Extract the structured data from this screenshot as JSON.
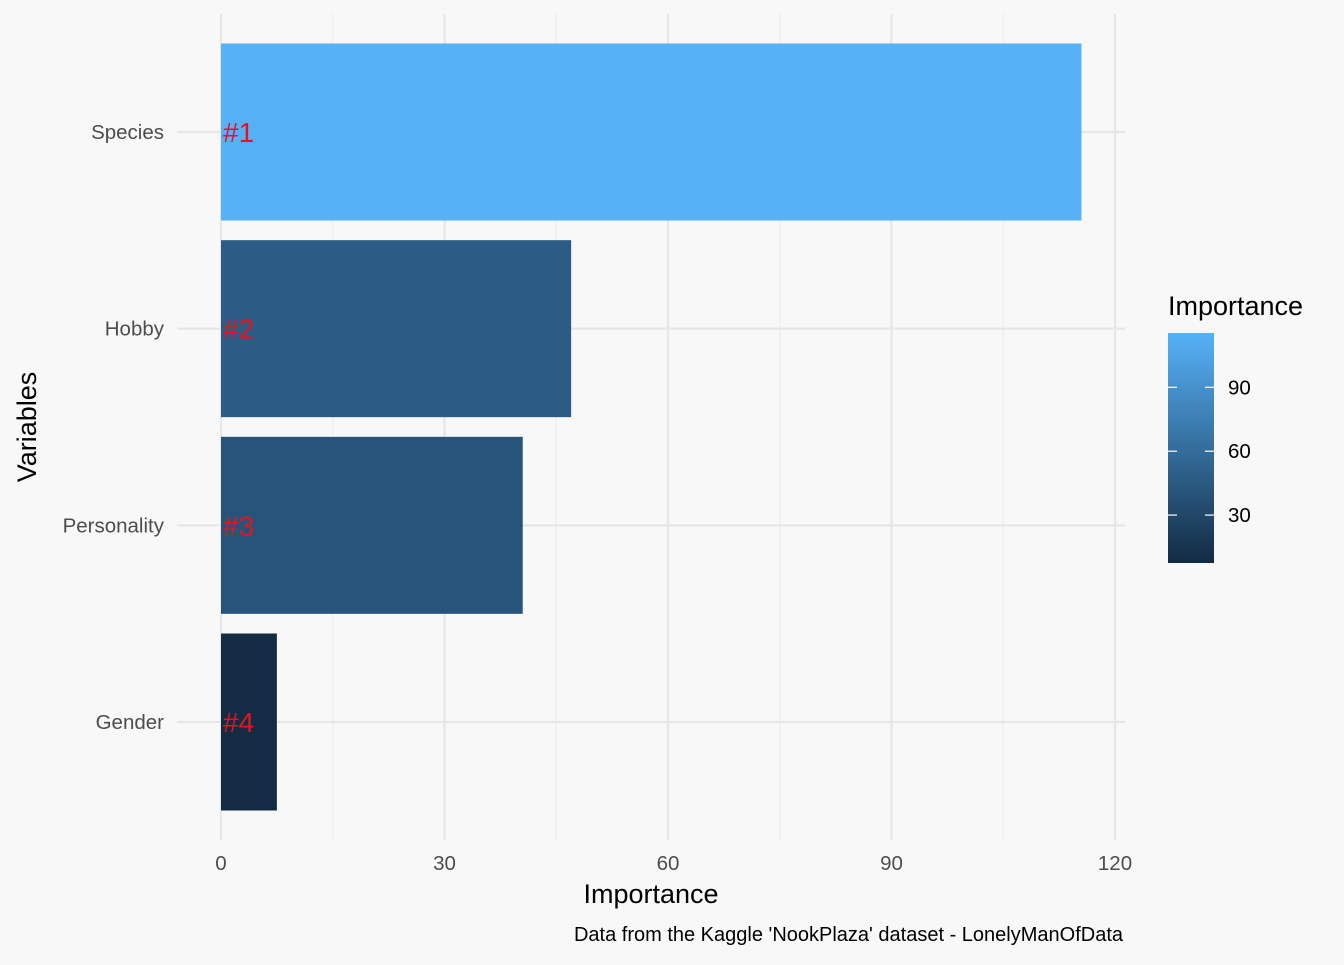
{
  "chart_data": {
    "type": "bar",
    "orientation": "horizontal",
    "categories": [
      "Species",
      "Hobby",
      "Personality",
      "Gender"
    ],
    "values": [
      115.5,
      47,
      40.5,
      7.5
    ],
    "ranks": [
      "#1",
      "#2",
      "#3",
      "#4"
    ],
    "xlabel": "Importance",
    "ylabel": "Variables",
    "xlim": [
      0,
      120
    ],
    "x_ticks": [
      0,
      30,
      60,
      90,
      120
    ],
    "grid": true,
    "rank_label_color": "#e8121f",
    "color_scale": {
      "low": "#132b43",
      "high": "#56b1f7",
      "min": 7.5,
      "max": 115.5
    },
    "legend": {
      "title": "Importance",
      "placement": "right",
      "ticks": [
        30,
        60,
        90
      ]
    },
    "caption": "Data from the Kaggle 'NookPlaza' dataset - LonelyManOfData"
  }
}
